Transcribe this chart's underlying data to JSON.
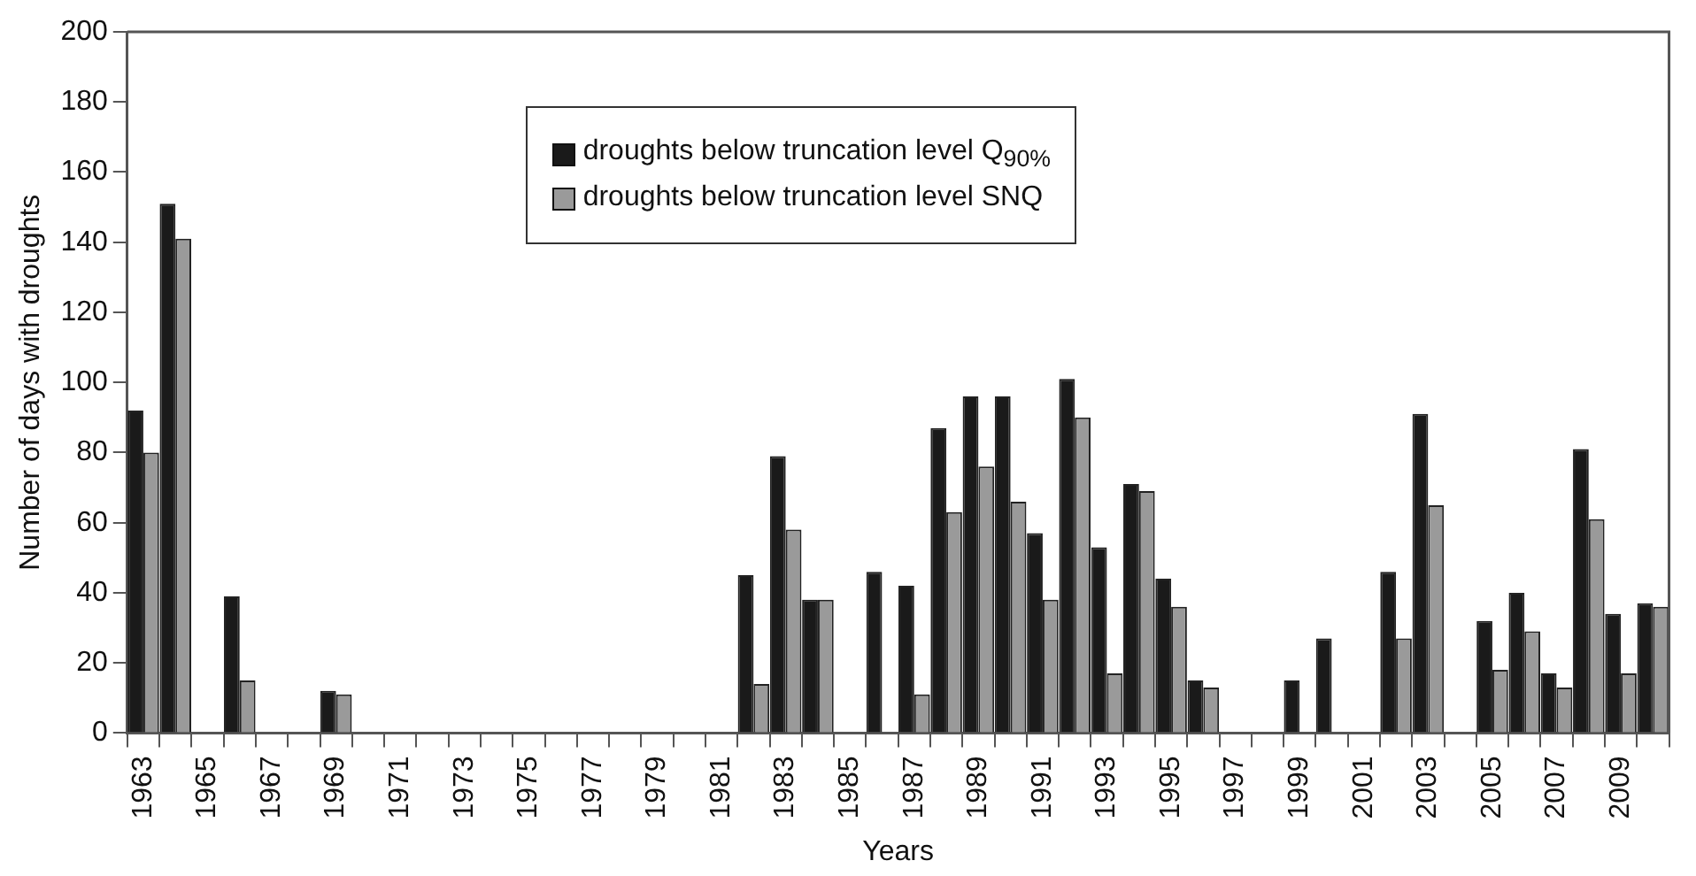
{
  "chart_data": {
    "type": "bar",
    "xlabel": "Years",
    "ylabel": "Number of days with droughts",
    "categories": [
      "1963",
      null,
      "1965",
      null,
      "1967",
      null,
      "1969",
      null,
      "1971",
      null,
      "1973",
      null,
      "1975",
      null,
      "1977",
      null,
      "1979",
      null,
      "1981",
      null,
      "1983",
      null,
      "1985",
      null,
      "1987",
      null,
      "1989",
      null,
      "1991",
      null,
      "1993",
      null,
      "1995",
      null,
      "1997",
      null,
      "1999",
      null,
      "2001",
      null,
      "2003",
      null,
      "2005",
      null,
      "2007",
      null,
      "2009",
      null
    ],
    "series": [
      {
        "name": "droughts below truncation level Q$_{90%}$",
        "color": "#1a1a1a",
        "values": [
          92,
          151,
          0,
          39,
          0,
          0,
          12,
          0,
          0,
          0,
          0,
          0,
          0,
          0,
          0,
          0,
          0,
          0,
          0,
          45,
          79,
          38,
          0,
          46,
          42,
          87,
          96,
          96,
          57,
          101,
          53,
          71,
          44,
          15,
          0,
          0,
          15,
          27,
          0,
          46,
          91,
          0,
          32,
          40,
          17,
          81,
          34,
          37
        ]
      },
      {
        "name": "droughts below truncation level  SNQ",
        "color": "#9a9a9a",
        "values": [
          80,
          141,
          0,
          15,
          0,
          0,
          11,
          0,
          0,
          0,
          0,
          0,
          0,
          0,
          0,
          0,
          0,
          0,
          0,
          14,
          58,
          38,
          0,
          0,
          11,
          63,
          76,
          66,
          38,
          90,
          17,
          69,
          36,
          13,
          0,
          0,
          0,
          0,
          0,
          27,
          65,
          0,
          18,
          29,
          13,
          61,
          17,
          36
        ]
      }
    ],
    "ylim": [
      0,
      200
    ],
    "yticks": [
      0,
      20,
      40,
      60,
      80,
      100,
      120,
      140,
      160,
      180,
      200
    ],
    "grid": false,
    "legend": "top"
  }
}
